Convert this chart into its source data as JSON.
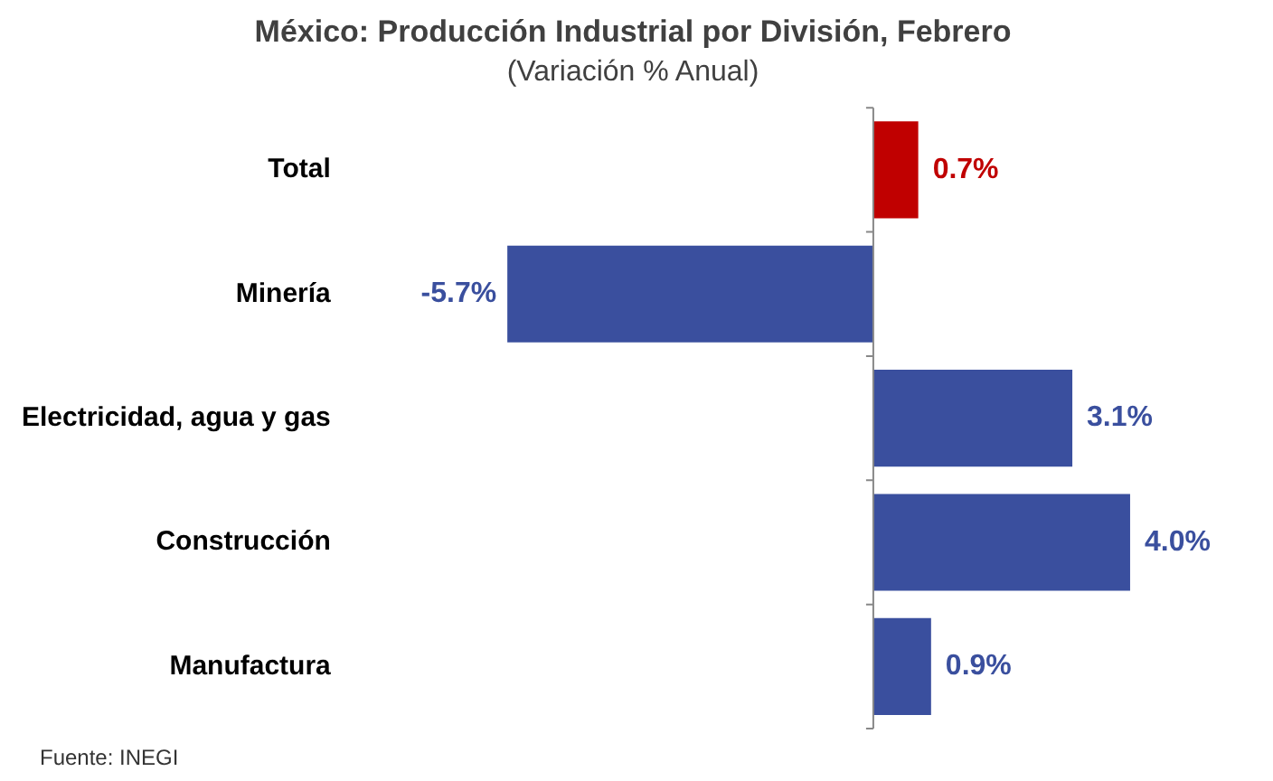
{
  "chart_data": {
    "type": "bar",
    "orientation": "horizontal",
    "title": "México: Producción Industrial por División, Febrero",
    "subtitle": "(Variación % Anual)",
    "categories": [
      "Total",
      "Minería",
      "Electricidad, agua y gas",
      "Construcción",
      "Manufactura"
    ],
    "values": [
      0.7,
      -5.7,
      3.1,
      4.0,
      0.9
    ],
    "colors": [
      "#c00000",
      "#3a4f9e",
      "#3a4f9e",
      "#3a4f9e",
      "#3a4f9e"
    ],
    "value_labels": [
      "0.7%",
      "-5.7%",
      "3.1%",
      "4.0%",
      "0.9%"
    ],
    "legend": false,
    "annotations": [
      "Fuente: INEGI"
    ]
  }
}
